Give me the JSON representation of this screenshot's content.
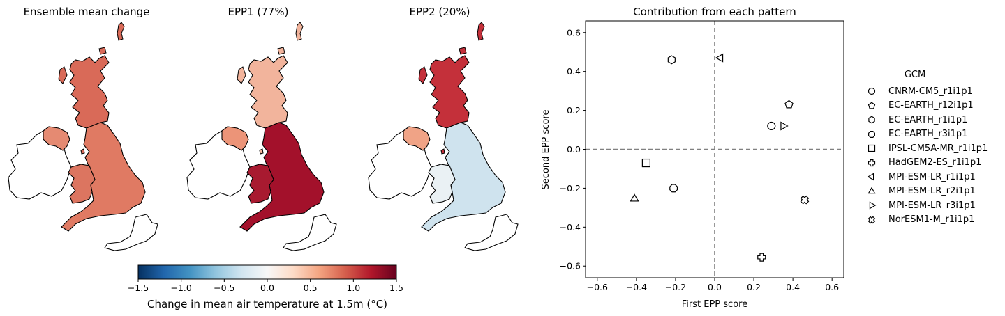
{
  "maps": [
    {
      "title": "Ensemble mean change",
      "colors": {
        "scot": "#d96a58",
        "eng": "#e07a63",
        "wales": "#dc7560",
        "ni": "#e58a72"
      }
    },
    {
      "title": "EPP1 (77%)",
      "colors": {
        "scot": "#f2b49c",
        "eng": "#a3112b",
        "wales": "#a81a30",
        "ni": "#ec9478"
      }
    },
    {
      "title": "EPP2 (20%)",
      "colors": {
        "scot": "#c4303a",
        "eng": "#cfe3ee",
        "wales": "#eaf1f4",
        "ni": "#f0a386"
      }
    }
  ],
  "colorbar": {
    "label": "Change in mean air temperature at 1.5m (°C)",
    "ticks": [
      "−1.5",
      "−1.0",
      "−0.5",
      "0.0",
      "0.5",
      "1.0",
      "1.5"
    ],
    "stops": [
      "#053061",
      "#2166ac",
      "#4393c3",
      "#92c5de",
      "#d1e5f0",
      "#f7f7f7",
      "#fddbc7",
      "#f4a582",
      "#d6604d",
      "#b2182b",
      "#67001f"
    ]
  },
  "chart_data": {
    "type": "scatter",
    "title": "Contribution from each pattern",
    "xlabel": "First EPP score",
    "ylabel": "Second EPP score",
    "xlim": [
      -0.66,
      0.66
    ],
    "ylim": [
      -0.66,
      0.66
    ],
    "xticks": [
      "−0.6",
      "−0.4",
      "−0.2",
      "0.0",
      "0.2",
      "0.4",
      "0.6"
    ],
    "yticks": [
      "−0.6",
      "−0.4",
      "−0.2",
      "0.0",
      "0.2",
      "0.4",
      "0.6"
    ],
    "legend_title": "GCM",
    "legend_placement": "outside right",
    "reference_lines": {
      "x": 0,
      "y": 0,
      "style": "dashed",
      "color": "#808080"
    },
    "series": [
      {
        "name": "CNRM-CM5_r1i1p1",
        "marker": "circle",
        "x": 0.29,
        "y": 0.12
      },
      {
        "name": "EC-EARTH_r12i1p1",
        "marker": "pentagon",
        "x": 0.38,
        "y": 0.23
      },
      {
        "name": "EC-EARTH_r1i1p1",
        "marker": "hexagon",
        "x": -0.22,
        "y": 0.46
      },
      {
        "name": "EC-EARTH_r3i1p1",
        "marker": "octagon",
        "x": -0.21,
        "y": -0.2
      },
      {
        "name": "IPSL-CM5A-MR_r1i1p1",
        "marker": "square",
        "x": -0.35,
        "y": -0.07
      },
      {
        "name": "HadGEM2-ES_r1i1p1",
        "marker": "plus",
        "x": 0.24,
        "y": -0.555
      },
      {
        "name": "MPI-ESM-LR_r1i1p1",
        "marker": "triangle-left",
        "x": 0.03,
        "y": 0.47
      },
      {
        "name": "MPI-ESM-LR_r2i1p1",
        "marker": "triangle-up",
        "x": -0.41,
        "y": -0.255
      },
      {
        "name": "MPI-ESM-LR_r3i1p1",
        "marker": "triangle-right",
        "x": 0.35,
        "y": 0.12
      },
      {
        "name": "NorESM1-M_r1i1p1",
        "marker": "x",
        "x": 0.46,
        "y": -0.26
      }
    ]
  }
}
